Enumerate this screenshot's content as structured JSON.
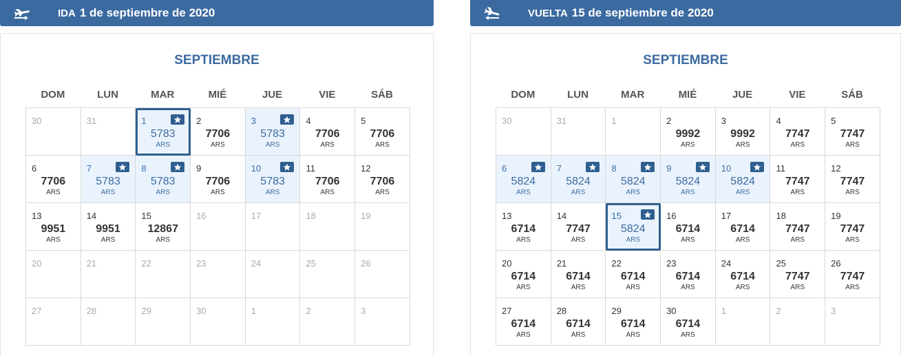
{
  "outbound": {
    "direction": "IDA",
    "date": "1 de septiembre de 2020",
    "month": "SEPTIEMBRE",
    "weekdays": [
      "DOM",
      "LUN",
      "MAR",
      "MIÉ",
      "JUE",
      "VIE",
      "SÁB"
    ],
    "days": [
      {
        "day": "30",
        "price": "",
        "currency": "",
        "type": "other"
      },
      {
        "day": "31",
        "price": "",
        "currency": "",
        "type": "other"
      },
      {
        "day": "1",
        "price": "5783",
        "currency": "ARS",
        "type": "promo",
        "selected": true
      },
      {
        "day": "2",
        "price": "7706",
        "currency": "ARS",
        "type": "normal"
      },
      {
        "day": "3",
        "price": "5783",
        "currency": "ARS",
        "type": "promo"
      },
      {
        "day": "4",
        "price": "7706",
        "currency": "ARS",
        "type": "normal"
      },
      {
        "day": "5",
        "price": "7706",
        "currency": "ARS",
        "type": "normal"
      },
      {
        "day": "6",
        "price": "7706",
        "currency": "ARS",
        "type": "normal"
      },
      {
        "day": "7",
        "price": "5783",
        "currency": "ARS",
        "type": "promo"
      },
      {
        "day": "8",
        "price": "5783",
        "currency": "ARS",
        "type": "promo"
      },
      {
        "day": "9",
        "price": "7706",
        "currency": "ARS",
        "type": "normal"
      },
      {
        "day": "10",
        "price": "5783",
        "currency": "ARS",
        "type": "promo"
      },
      {
        "day": "11",
        "price": "7706",
        "currency": "ARS",
        "type": "normal"
      },
      {
        "day": "12",
        "price": "7706",
        "currency": "ARS",
        "type": "normal"
      },
      {
        "day": "13",
        "price": "9951",
        "currency": "ARS",
        "type": "normal"
      },
      {
        "day": "14",
        "price": "9951",
        "currency": "ARS",
        "type": "normal"
      },
      {
        "day": "15",
        "price": "12867",
        "currency": "ARS",
        "type": "normal"
      },
      {
        "day": "16",
        "price": "",
        "currency": "",
        "type": "noprice"
      },
      {
        "day": "17",
        "price": "",
        "currency": "",
        "type": "noprice"
      },
      {
        "day": "18",
        "price": "",
        "currency": "",
        "type": "noprice"
      },
      {
        "day": "19",
        "price": "",
        "currency": "",
        "type": "noprice"
      },
      {
        "day": "20",
        "price": "",
        "currency": "",
        "type": "noprice"
      },
      {
        "day": "21",
        "price": "",
        "currency": "",
        "type": "noprice"
      },
      {
        "day": "22",
        "price": "",
        "currency": "",
        "type": "noprice"
      },
      {
        "day": "23",
        "price": "",
        "currency": "",
        "type": "noprice"
      },
      {
        "day": "24",
        "price": "",
        "currency": "",
        "type": "noprice"
      },
      {
        "day": "25",
        "price": "",
        "currency": "",
        "type": "noprice"
      },
      {
        "day": "26",
        "price": "",
        "currency": "",
        "type": "noprice"
      },
      {
        "day": "27",
        "price": "",
        "currency": "",
        "type": "noprice"
      },
      {
        "day": "28",
        "price": "",
        "currency": "",
        "type": "noprice"
      },
      {
        "day": "29",
        "price": "",
        "currency": "",
        "type": "noprice"
      },
      {
        "day": "30",
        "price": "",
        "currency": "",
        "type": "noprice"
      },
      {
        "day": "1",
        "price": "",
        "currency": "",
        "type": "other"
      },
      {
        "day": "2",
        "price": "",
        "currency": "",
        "type": "other"
      },
      {
        "day": "3",
        "price": "",
        "currency": "",
        "type": "other"
      }
    ]
  },
  "return": {
    "direction": "VUELTA",
    "date": "15 de septiembre de 2020",
    "month": "SEPTIEMBRE",
    "weekdays": [
      "DOM",
      "LUN",
      "MAR",
      "MIÉ",
      "JUE",
      "VIE",
      "SÁB"
    ],
    "days": [
      {
        "day": "30",
        "price": "",
        "currency": "",
        "type": "other"
      },
      {
        "day": "31",
        "price": "",
        "currency": "",
        "type": "other"
      },
      {
        "day": "1",
        "price": "",
        "currency": "",
        "type": "noprice"
      },
      {
        "day": "2",
        "price": "9992",
        "currency": "ARS",
        "type": "normal"
      },
      {
        "day": "3",
        "price": "9992",
        "currency": "ARS",
        "type": "normal"
      },
      {
        "day": "4",
        "price": "7747",
        "currency": "ARS",
        "type": "normal"
      },
      {
        "day": "5",
        "price": "7747",
        "currency": "ARS",
        "type": "normal"
      },
      {
        "day": "6",
        "price": "5824",
        "currency": "ARS",
        "type": "promo"
      },
      {
        "day": "7",
        "price": "5824",
        "currency": "ARS",
        "type": "promo"
      },
      {
        "day": "8",
        "price": "5824",
        "currency": "ARS",
        "type": "promo"
      },
      {
        "day": "9",
        "price": "5824",
        "currency": "ARS",
        "type": "promo"
      },
      {
        "day": "10",
        "price": "5824",
        "currency": "ARS",
        "type": "promo"
      },
      {
        "day": "11",
        "price": "7747",
        "currency": "ARS",
        "type": "normal"
      },
      {
        "day": "12",
        "price": "7747",
        "currency": "ARS",
        "type": "normal"
      },
      {
        "day": "13",
        "price": "6714",
        "currency": "ARS",
        "type": "normal"
      },
      {
        "day": "14",
        "price": "7747",
        "currency": "ARS",
        "type": "normal"
      },
      {
        "day": "15",
        "price": "5824",
        "currency": "ARS",
        "type": "promo",
        "selected": true
      },
      {
        "day": "16",
        "price": "6714",
        "currency": "ARS",
        "type": "normal"
      },
      {
        "day": "17",
        "price": "6714",
        "currency": "ARS",
        "type": "normal"
      },
      {
        "day": "18",
        "price": "7747",
        "currency": "ARS",
        "type": "normal"
      },
      {
        "day": "19",
        "price": "7747",
        "currency": "ARS",
        "type": "normal"
      },
      {
        "day": "20",
        "price": "6714",
        "currency": "ARS",
        "type": "normal"
      },
      {
        "day": "21",
        "price": "6714",
        "currency": "ARS",
        "type": "normal"
      },
      {
        "day": "22",
        "price": "6714",
        "currency": "ARS",
        "type": "normal"
      },
      {
        "day": "23",
        "price": "6714",
        "currency": "ARS",
        "type": "normal"
      },
      {
        "day": "24",
        "price": "6714",
        "currency": "ARS",
        "type": "normal"
      },
      {
        "day": "25",
        "price": "7747",
        "currency": "ARS",
        "type": "normal"
      },
      {
        "day": "26",
        "price": "7747",
        "currency": "ARS",
        "type": "normal"
      },
      {
        "day": "27",
        "price": "6714",
        "currency": "ARS",
        "type": "normal"
      },
      {
        "day": "28",
        "price": "6714",
        "currency": "ARS",
        "type": "normal"
      },
      {
        "day": "29",
        "price": "6714",
        "currency": "ARS",
        "type": "normal"
      },
      {
        "day": "30",
        "price": "6714",
        "currency": "ARS",
        "type": "normal"
      },
      {
        "day": "1",
        "price": "",
        "currency": "",
        "type": "other"
      },
      {
        "day": "2",
        "price": "",
        "currency": "",
        "type": "other"
      },
      {
        "day": "3",
        "price": "",
        "currency": "",
        "type": "other"
      }
    ]
  },
  "colors": {
    "header_bg": "#3b6aa0",
    "promo_bg": "#eaf3fd",
    "promo_text": "#3b6aa0",
    "selected_border": "#2f5f8f"
  }
}
